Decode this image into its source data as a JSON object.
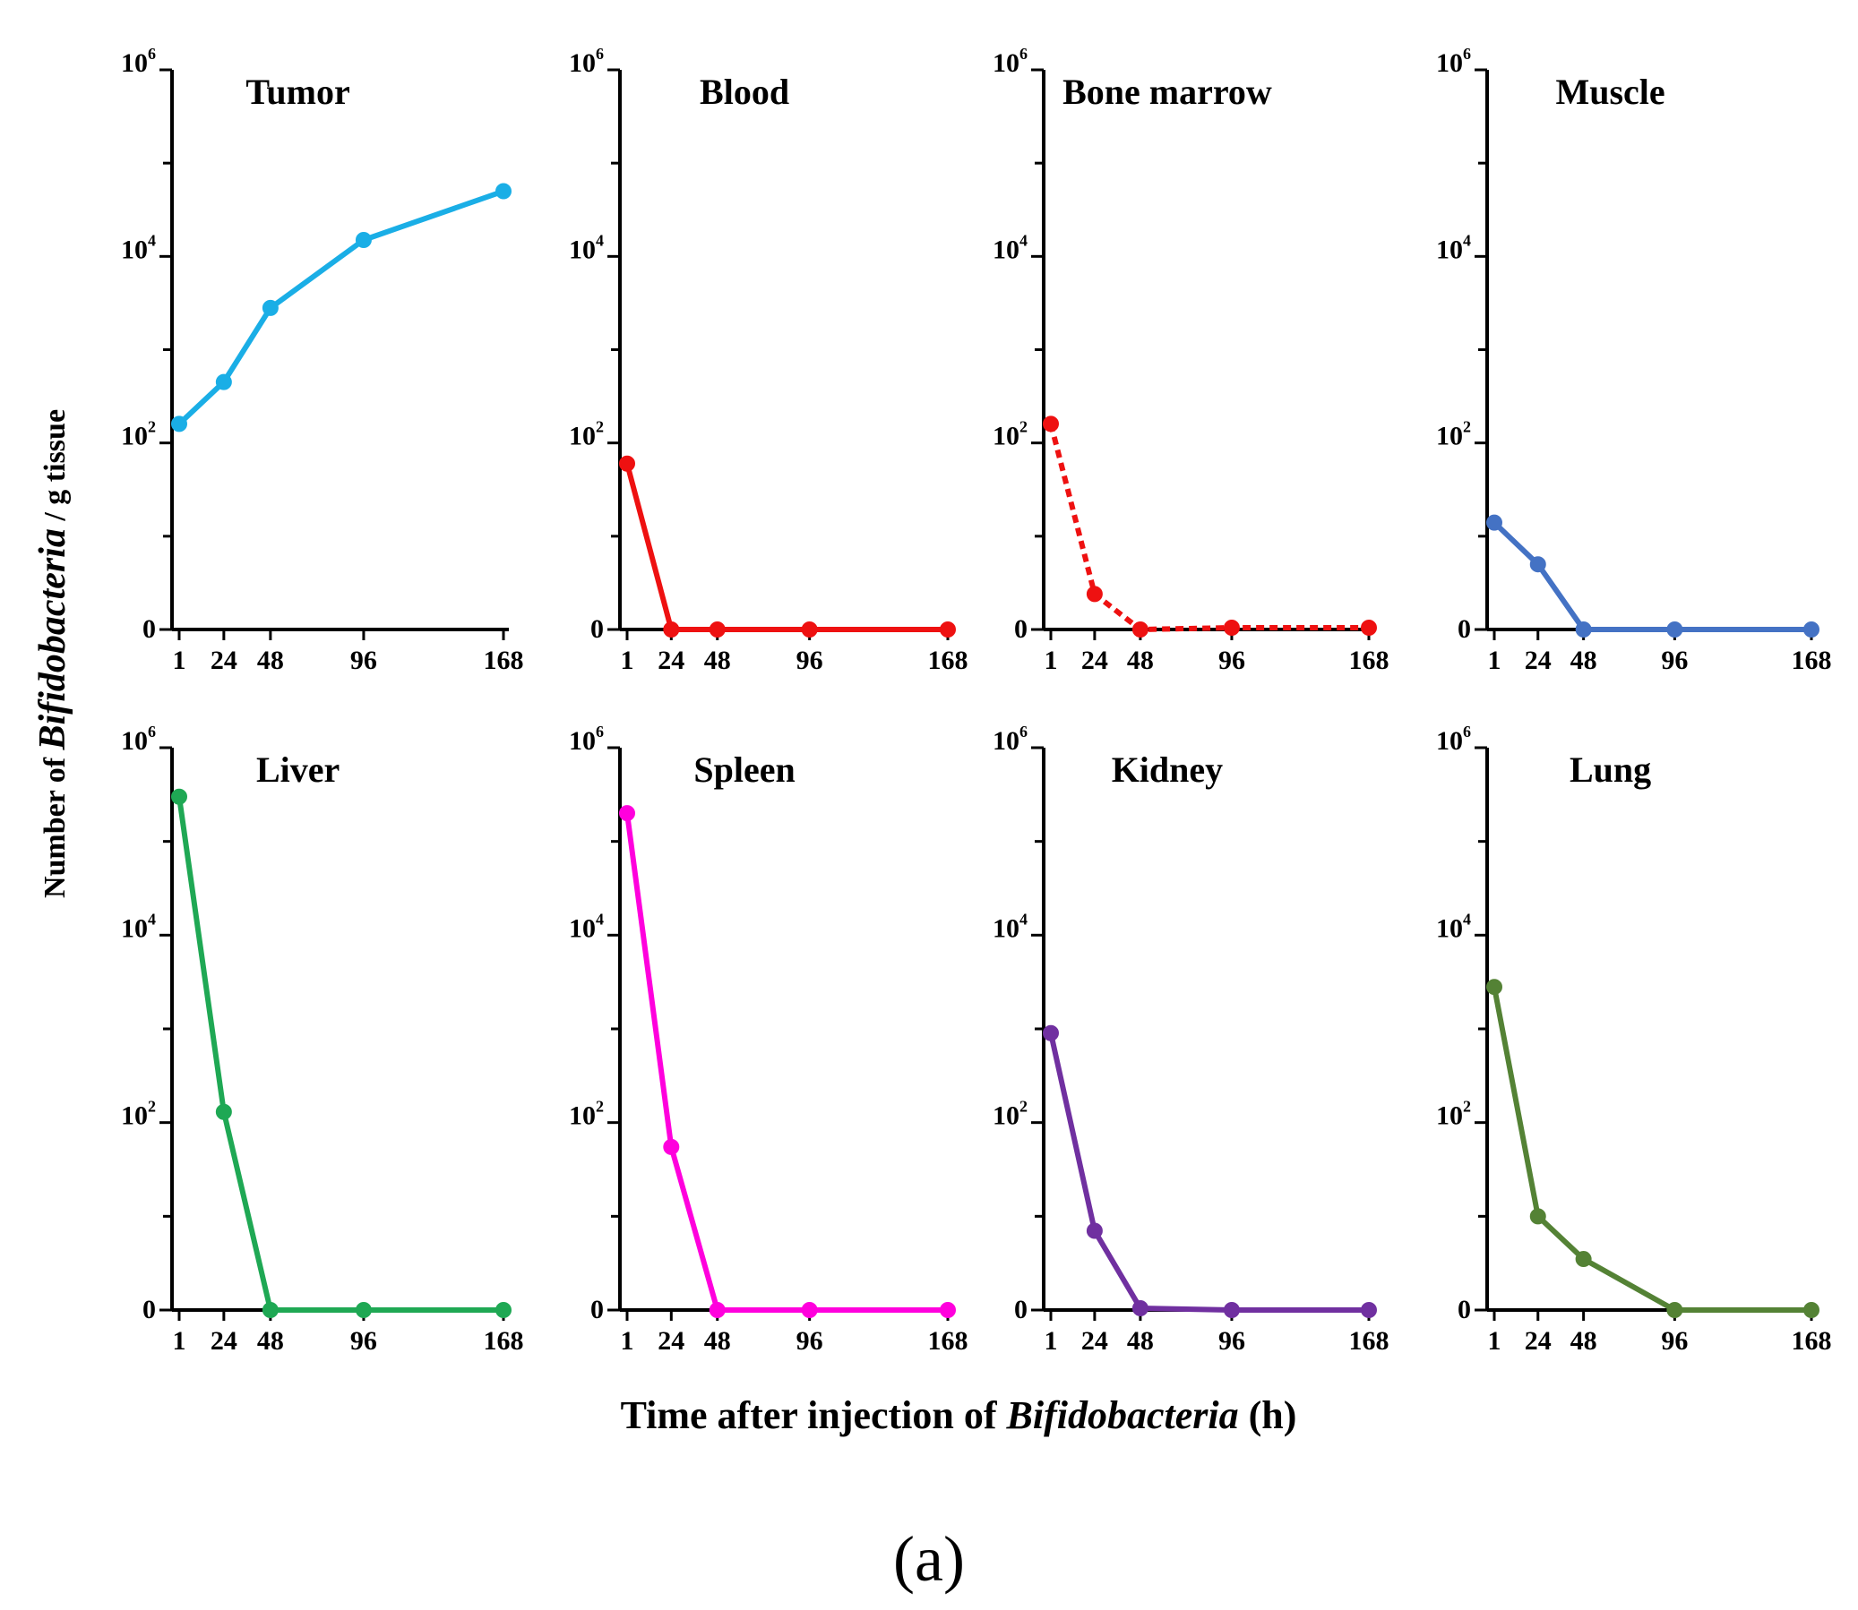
{
  "figure": {
    "label": "(a)",
    "xlabel_prefix": "Time after injection of ",
    "xlabel_italic": "Bifidobacteria",
    "xlabel_suffix": " (h)",
    "ylabel_prefix": "Number of ",
    "ylabel_italic": "Bifidobacteria",
    "ylabel_suffix": " / g tissue"
  },
  "chart_data": [
    {
      "type": "line",
      "title": "Tumor",
      "color": "#1aaee6",
      "dashed": false,
      "x": [
        1,
        24,
        48,
        96,
        168
      ],
      "y": [
        160,
        450,
        2800,
        15000,
        50000
      ],
      "yscale": "log",
      "ylim": [
        0,
        1000000
      ],
      "xticks": [
        "1",
        "24",
        "48",
        "96",
        "168"
      ],
      "yticks": [
        "0",
        "10^2",
        "10^4",
        "10^6"
      ]
    },
    {
      "type": "line",
      "title": "Blood",
      "color": "#ee1111",
      "dashed": false,
      "x": [
        1,
        24,
        48,
        96,
        168
      ],
      "y": [
        60,
        0,
        0,
        0,
        0
      ],
      "yscale": "log",
      "ylim": [
        0,
        1000000
      ],
      "xticks": [
        "1",
        "24",
        "48",
        "96",
        "168"
      ],
      "yticks": [
        "0",
        "10^2",
        "10^4",
        "10^6"
      ]
    },
    {
      "type": "line",
      "title": "Bone marrow",
      "color": "#ee1111",
      "dashed": true,
      "x": [
        1,
        24,
        48,
        96,
        168
      ],
      "y": [
        160,
        2.4,
        0,
        0.3,
        0.3
      ],
      "yscale": "log",
      "ylim": [
        0,
        1000000
      ],
      "xticks": [
        "1",
        "24",
        "48",
        "96",
        "168"
      ],
      "yticks": [
        "0",
        "10^2",
        "10^4",
        "10^6"
      ]
    },
    {
      "type": "line",
      "title": "Muscle",
      "color": "#4472c4",
      "dashed": false,
      "x": [
        1,
        24,
        48,
        96,
        168
      ],
      "y": [
        14,
        5,
        0,
        0,
        0
      ],
      "yscale": "log",
      "ylim": [
        0,
        1000000
      ],
      "xticks": [
        "1",
        "24",
        "48",
        "96",
        "168"
      ],
      "yticks": [
        "0",
        "10^2",
        "10^4",
        "10^6"
      ]
    },
    {
      "type": "line",
      "title": "Liver",
      "color": "#1fa854",
      "dashed": false,
      "x": [
        1,
        24,
        48,
        96,
        168
      ],
      "y": [
        300000,
        130,
        0,
        0,
        0
      ],
      "yscale": "log",
      "ylim": [
        0,
        1000000
      ],
      "xticks": [
        "1",
        "24",
        "48",
        "96",
        "168"
      ],
      "yticks": [
        "0",
        "10^2",
        "10^4",
        "10^6"
      ]
    },
    {
      "type": "line",
      "title": "Spleen",
      "color": "#ff00dd",
      "dashed": false,
      "x": [
        1,
        24,
        48,
        96,
        168
      ],
      "y": [
        200000,
        55,
        0,
        0,
        0
      ],
      "yscale": "log",
      "ylim": [
        0,
        1000000
      ],
      "xticks": [
        "1",
        "24",
        "48",
        "96",
        "168"
      ],
      "yticks": [
        "0",
        "10^2",
        "10^4",
        "10^6"
      ]
    },
    {
      "type": "line",
      "title": "Kidney",
      "color": "#7030a0",
      "dashed": false,
      "x": [
        1,
        24,
        48,
        96,
        168
      ],
      "y": [
        900,
        7,
        0.3,
        0.1,
        0.1
      ],
      "yscale": "log",
      "ylim": [
        0,
        1000000
      ],
      "xticks": [
        "1",
        "24",
        "48",
        "96",
        "168"
      ],
      "yticks": [
        "0",
        "10^2",
        "10^4",
        "10^6"
      ]
    },
    {
      "type": "line",
      "title": "Lung",
      "color": "#548235",
      "dashed": false,
      "x": [
        1,
        24,
        48,
        96,
        168
      ],
      "y": [
        2800,
        10,
        3.5,
        0,
        0
      ],
      "yscale": "log",
      "ylim": [
        0,
        1000000
      ],
      "xticks": [
        "1",
        "24",
        "48",
        "96",
        "168"
      ],
      "yticks": [
        "0",
        "10^2",
        "10^4",
        "10^6"
      ]
    }
  ]
}
